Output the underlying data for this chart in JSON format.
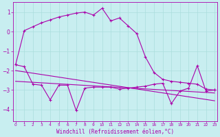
{
  "xlabel": "Windchill (Refroidissement éolien,°C)",
  "background_color": "#c8eef0",
  "grid_color": "#aadddd",
  "line_color": "#aa00aa",
  "x_ticks": [
    0,
    1,
    2,
    3,
    4,
    5,
    6,
    7,
    8,
    9,
    10,
    11,
    12,
    13,
    14,
    15,
    16,
    17,
    18,
    19,
    20,
    21,
    22,
    23
  ],
  "y_ticks": [
    -4,
    -3,
    -2,
    -1,
    0,
    1
  ],
  "ylim": [
    -4.6,
    1.5
  ],
  "xlim": [
    -0.3,
    23.3
  ],
  "series1_x": [
    0,
    1,
    2,
    3,
    4,
    5,
    6,
    7,
    8,
    9,
    10,
    11,
    12,
    13,
    14,
    15,
    16,
    17,
    18,
    19,
    20,
    21,
    22,
    23
  ],
  "series1_y": [
    -1.7,
    0.05,
    0.25,
    0.45,
    0.6,
    0.75,
    0.85,
    0.95,
    1.0,
    0.85,
    1.2,
    0.55,
    0.7,
    0.3,
    -0.1,
    -1.3,
    -2.1,
    -2.45,
    -2.55,
    -2.6,
    -2.65,
    -2.7,
    -2.95,
    -3.0
  ],
  "series2_x": [
    0,
    1,
    2,
    3,
    4,
    5,
    6,
    7,
    8,
    9,
    10,
    11,
    12,
    13,
    14,
    15,
    16,
    17,
    18,
    19,
    20,
    21,
    22,
    23
  ],
  "series2_y": [
    -1.7,
    -1.8,
    -2.7,
    -2.75,
    -3.5,
    -2.75,
    -2.75,
    -4.05,
    -2.9,
    -2.85,
    -2.85,
    -2.85,
    -2.95,
    -2.9,
    -2.85,
    -2.8,
    -2.7,
    -2.65,
    -3.7,
    -3.05,
    -2.9,
    -1.75,
    -3.05,
    -3.0
  ],
  "series3_x": [
    0,
    23
  ],
  "series3_y": [
    -2.0,
    -3.55
  ],
  "series4_x": [
    0,
    23
  ],
  "series4_y": [
    -2.55,
    -3.15
  ]
}
